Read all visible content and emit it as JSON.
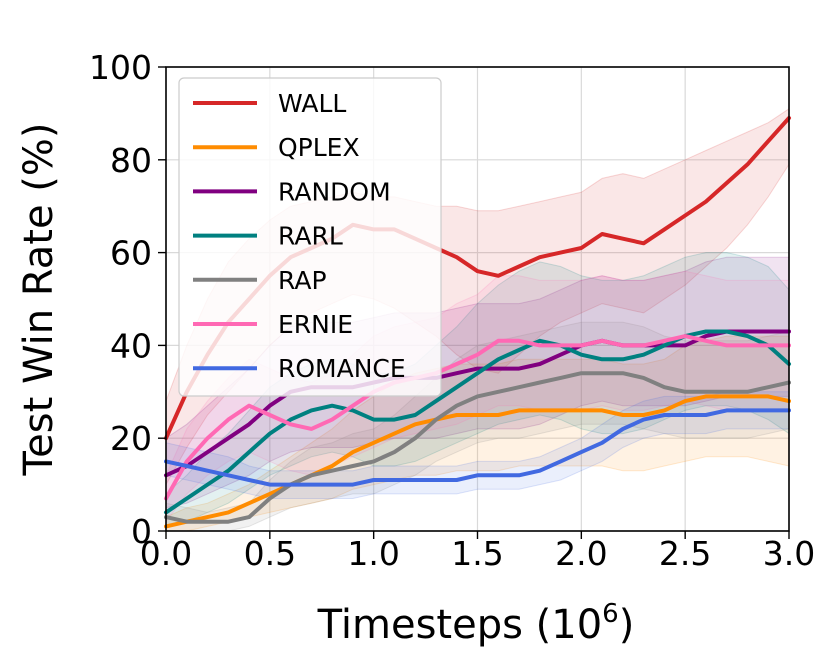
{
  "chart_data": {
    "type": "line",
    "xlabel": "Timesteps (10",
    "xlabel_sup": "6",
    "xlabel_end": ")",
    "ylabel": "Test Win Rate (%)",
    "xlim": [
      0,
      3.0
    ],
    "ylim": [
      0,
      100
    ],
    "xticks": [
      "0.0",
      "0.5",
      "1.0",
      "1.5",
      "2.0",
      "2.5",
      "3.0"
    ],
    "yticks": [
      "0",
      "20",
      "40",
      "60",
      "80",
      "100"
    ],
    "grid": true,
    "legend_position": "upper-left",
    "x": [
      0,
      0.1,
      0.2,
      0.3,
      0.4,
      0.5,
      0.6,
      0.7,
      0.8,
      0.9,
      1.0,
      1.1,
      1.2,
      1.3,
      1.4,
      1.5,
      1.6,
      1.7,
      1.8,
      1.9,
      2.0,
      2.1,
      2.2,
      2.3,
      2.4,
      2.5,
      2.6,
      2.7,
      2.8,
      2.9,
      3.0
    ],
    "series": [
      {
        "name": "WALL",
        "color": "#d62728",
        "values": [
          20,
          30,
          38,
          45,
          50,
          55,
          59,
          61,
          63,
          66,
          65,
          65,
          63,
          61,
          59,
          56,
          55,
          57,
          59,
          60,
          61,
          64,
          63,
          62,
          65,
          68,
          71,
          75,
          79,
          84,
          89
        ],
        "lower": [
          10,
          18,
          25,
          30,
          35,
          40,
          44,
          47,
          49,
          51,
          50,
          48,
          45,
          42,
          38,
          35,
          34,
          38,
          42,
          45,
          47,
          49,
          48,
          47,
          50,
          53,
          57,
          61,
          66,
          72,
          79
        ],
        "upper": [
          28,
          40,
          50,
          58,
          63,
          67,
          70,
          71,
          72,
          73,
          72,
          72,
          71,
          70,
          70,
          69,
          69,
          70,
          71,
          72,
          73,
          76,
          77,
          76,
          78,
          80,
          82,
          84,
          86,
          88,
          91
        ]
      },
      {
        "name": "QPLEX",
        "color": "#ff8c00",
        "values": [
          1,
          2,
          3,
          4,
          6,
          8,
          10,
          12,
          14,
          17,
          19,
          21,
          23,
          24,
          25,
          25,
          25,
          26,
          26,
          26,
          26,
          26,
          25,
          25,
          26,
          28,
          29,
          29,
          29,
          29,
          28
        ],
        "lower": [
          0,
          0,
          1,
          2,
          3,
          4,
          5,
          6,
          7,
          9,
          10,
          11,
          12,
          12,
          13,
          13,
          13,
          14,
          14,
          14,
          14,
          14,
          13,
          13,
          14,
          15,
          16,
          16,
          16,
          15,
          14
        ],
        "upper": [
          3,
          5,
          6,
          8,
          10,
          13,
          16,
          19,
          22,
          26,
          29,
          32,
          34,
          35,
          36,
          36,
          36,
          37,
          37,
          37,
          37,
          37,
          36,
          36,
          37,
          40,
          41,
          42,
          42,
          42,
          42
        ]
      },
      {
        "name": "RANDOM",
        "color": "#800080",
        "values": [
          12,
          14,
          17,
          20,
          23,
          27,
          30,
          31,
          31,
          31,
          32,
          33,
          33,
          33,
          34,
          35,
          35,
          35,
          36,
          38,
          40,
          41,
          40,
          40,
          40,
          40,
          42,
          43,
          43,
          43,
          43
        ],
        "lower": [
          5,
          6,
          8,
          10,
          12,
          15,
          17,
          18,
          18,
          18,
          19,
          20,
          20,
          20,
          21,
          22,
          22,
          22,
          23,
          25,
          27,
          28,
          27,
          27,
          27,
          27,
          28,
          29,
          29,
          29,
          29
        ],
        "upper": [
          20,
          23,
          27,
          31,
          35,
          40,
          44,
          45,
          45,
          45,
          46,
          47,
          47,
          47,
          48,
          49,
          49,
          49,
          50,
          52,
          54,
          55,
          54,
          54,
          55,
          56,
          58,
          59,
          59,
          59,
          59
        ]
      },
      {
        "name": "RARL",
        "color": "#008080",
        "values": [
          4,
          7,
          10,
          13,
          17,
          21,
          24,
          26,
          27,
          26,
          24,
          24,
          25,
          28,
          31,
          34,
          37,
          39,
          41,
          40,
          38,
          37,
          37,
          38,
          40,
          42,
          43,
          43,
          42,
          40,
          36
        ],
        "lower": [
          1,
          2,
          4,
          6,
          9,
          12,
          14,
          16,
          17,
          16,
          14,
          14,
          15,
          17,
          19,
          21,
          23,
          24,
          25,
          24,
          22,
          21,
          21,
          22,
          24,
          26,
          27,
          27,
          26,
          24,
          21
        ],
        "upper": [
          8,
          12,
          17,
          21,
          26,
          31,
          34,
          36,
          37,
          36,
          34,
          34,
          36,
          40,
          44,
          49,
          53,
          56,
          58,
          57,
          55,
          54,
          54,
          55,
          57,
          59,
          60,
          60,
          59,
          57,
          52
        ]
      },
      {
        "name": "RAP",
        "color": "#808080",
        "values": [
          3,
          2,
          2,
          2,
          3,
          7,
          10,
          12,
          13,
          14,
          15,
          17,
          20,
          24,
          27,
          29,
          30,
          31,
          32,
          33,
          34,
          34,
          34,
          33,
          31,
          30,
          30,
          30,
          30,
          31,
          32
        ],
        "lower": [
          0,
          0,
          0,
          0,
          1,
          3,
          5,
          6,
          7,
          8,
          8,
          10,
          12,
          15,
          17,
          19,
          20,
          20,
          21,
          22,
          23,
          23,
          23,
          22,
          21,
          20,
          20,
          20,
          20,
          21,
          22
        ],
        "upper": [
          6,
          5,
          4,
          5,
          6,
          11,
          15,
          18,
          19,
          21,
          22,
          25,
          29,
          33,
          37,
          40,
          41,
          42,
          43,
          44,
          45,
          45,
          45,
          44,
          42,
          41,
          41,
          41,
          41,
          42,
          43
        ]
      },
      {
        "name": "ERNIE",
        "color": "#ff69b4",
        "values": [
          7,
          15,
          20,
          24,
          27,
          25,
          23,
          22,
          24,
          27,
          30,
          32,
          33,
          34,
          36,
          38,
          41,
          41,
          40,
          40,
          40,
          41,
          40,
          40,
          41,
          42,
          41,
          40,
          40,
          40,
          40
        ],
        "lower": [
          2,
          8,
          12,
          15,
          17,
          15,
          13,
          12,
          14,
          16,
          18,
          20,
          21,
          22,
          23,
          25,
          27,
          27,
          26,
          26,
          26,
          27,
          26,
          26,
          27,
          28,
          27,
          26,
          26,
          26,
          26
        ],
        "upper": [
          12,
          22,
          28,
          33,
          37,
          35,
          33,
          32,
          34,
          38,
          42,
          44,
          45,
          46,
          49,
          51,
          55,
          55,
          54,
          54,
          54,
          55,
          54,
          54,
          55,
          56,
          55,
          54,
          54,
          54,
          54
        ]
      },
      {
        "name": "ROMANCE",
        "color": "#4169e1",
        "values": [
          15,
          14,
          13,
          12,
          11,
          10,
          10,
          10,
          10,
          10,
          11,
          11,
          11,
          11,
          11,
          12,
          12,
          12,
          13,
          15,
          17,
          19,
          22,
          24,
          25,
          25,
          25,
          26,
          26,
          26,
          26
        ],
        "lower": [
          12,
          11,
          10,
          9,
          8,
          7,
          7,
          7,
          7,
          7,
          8,
          8,
          8,
          8,
          8,
          9,
          9,
          9,
          10,
          11,
          13,
          15,
          18,
          20,
          21,
          21,
          21,
          22,
          22,
          22,
          22
        ],
        "upper": [
          19,
          18,
          17,
          16,
          14,
          13,
          13,
          13,
          13,
          13,
          14,
          14,
          14,
          14,
          14,
          15,
          15,
          15,
          16,
          18,
          20,
          23,
          26,
          28,
          29,
          29,
          29,
          30,
          30,
          30,
          30
        ]
      }
    ]
  }
}
